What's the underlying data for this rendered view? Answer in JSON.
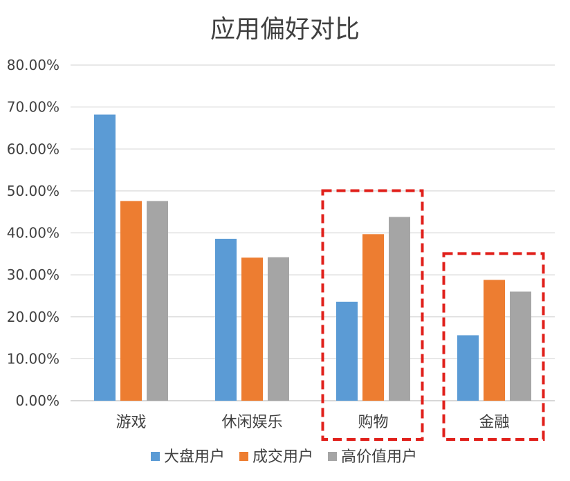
{
  "chart_data": {
    "type": "bar",
    "title": "应用偏好对比",
    "categories": [
      "游戏",
      "休闲娱乐",
      "购物",
      "金融"
    ],
    "series": [
      {
        "name": "大盘用户",
        "color": "#5B9BD5",
        "values": [
          68.2,
          38.6,
          23.6,
          15.6
        ]
      },
      {
        "name": "成交用户",
        "color": "#ED7D31",
        "values": [
          47.6,
          34.1,
          39.7,
          28.8
        ]
      },
      {
        "name": "高价值用户",
        "color": "#A5A5A5",
        "values": [
          47.6,
          34.2,
          43.8,
          26.0
        ]
      }
    ],
    "ylim": [
      0,
      80
    ],
    "y_ticks": [
      "0.00%",
      "10.00%",
      "20.00%",
      "30.00%",
      "40.00%",
      "50.00%",
      "60.00%",
      "70.00%",
      "80.00%"
    ],
    "grid": true,
    "legend": "bottom",
    "highlight_categories": [
      "购物",
      "金融"
    ],
    "highlight_color": "#E0201B",
    "grid_color": "#D9D9D9",
    "text_color": "#404040"
  }
}
